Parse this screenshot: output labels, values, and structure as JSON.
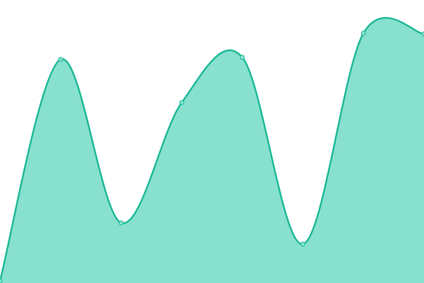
{
  "chart_data": {
    "type": "area",
    "categories": [
      null,
      null,
      null,
      null,
      null,
      null,
      null,
      null
    ],
    "values": [
      3,
      316,
      85,
      255,
      319,
      55,
      353,
      352
    ],
    "color": "#1fba98",
    "fill_color": "#88e0cf",
    "ylim": [
      0,
      400
    ],
    "curve": "smooth",
    "markers": true
  }
}
